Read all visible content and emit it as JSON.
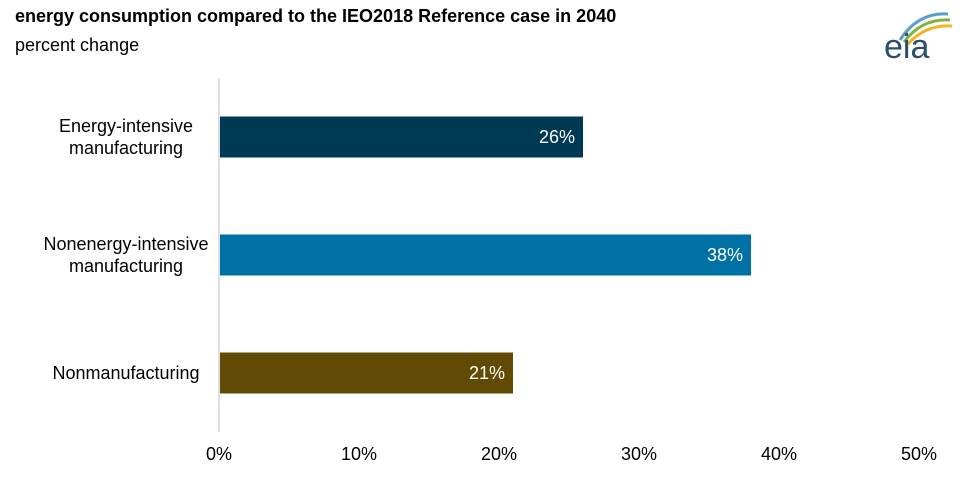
{
  "header": {
    "title": "energy consumption compared to the IEO2018 Reference case in 2040",
    "subtitle": "percent change"
  },
  "logo": {
    "text": "eia",
    "icon": "eia-logo-icon",
    "colors": [
      "#2a4e6c",
      "#5a9fc8",
      "#7fb341",
      "#f2b51d"
    ]
  },
  "chart_data": {
    "type": "bar",
    "orientation": "horizontal",
    "categories": [
      [
        "Energy-intensive",
        "manufacturing"
      ],
      [
        "Nonenergy-intensive",
        "manufacturing"
      ],
      [
        "Nonmanufacturing"
      ]
    ],
    "values": [
      26,
      38,
      21
    ],
    "data_labels": [
      "26%",
      "38%",
      "21%"
    ],
    "bar_colors": [
      "#003953",
      "#0071a4",
      "#614b04"
    ],
    "xlim": [
      0,
      50
    ],
    "xticks": [
      0,
      10,
      20,
      30,
      40,
      50
    ],
    "xtick_labels": [
      "0%",
      "10%",
      "20%",
      "30%",
      "40%",
      "50%"
    ],
    "grid": false,
    "legend": "none",
    "title": "energy consumption compared to the IEO2018 Reference case in 2040",
    "subtitle": "percent change"
  }
}
